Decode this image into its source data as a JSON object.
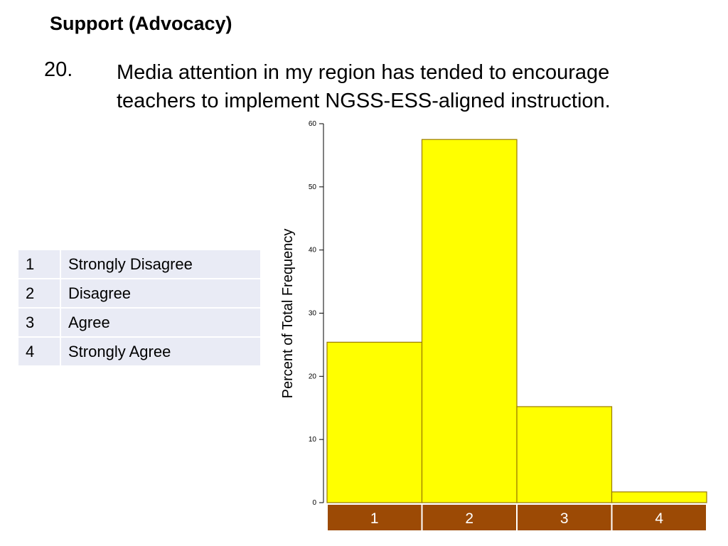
{
  "header": {
    "section_title": "Support (Advocacy)",
    "question_number": "20.",
    "question_text": "Media attention in my region has tended to encourage teachers to implement NGSS-ESS-aligned instruction."
  },
  "legend": [
    {
      "code": "1",
      "label": "Strongly Disagree"
    },
    {
      "code": "2",
      "label": "Disagree"
    },
    {
      "code": "3",
      "label": "Agree"
    },
    {
      "code": "4",
      "label": "Strongly Agree"
    }
  ],
  "colors": {
    "bar_fill": "#ffff00",
    "bar_stroke": "#9a7a00",
    "category_band": "#9c4a05",
    "legend_cell": "#e9ebf5"
  },
  "chart_data": {
    "type": "bar",
    "title": "",
    "xlabel": "",
    "ylabel": "Percent of Total Frequency",
    "categories": [
      "1",
      "2",
      "3",
      "4"
    ],
    "values": [
      25.4,
      57.5,
      15.2,
      1.7
    ],
    "ylim": [
      0,
      60
    ],
    "yticks": [
      "0",
      "10",
      "20",
      "30",
      "40",
      "50",
      "60"
    ],
    "grid": false,
    "legend": "none"
  }
}
